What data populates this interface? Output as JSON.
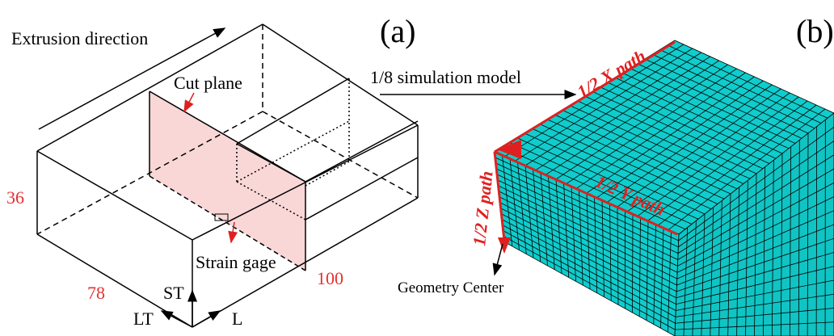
{
  "panel_a": {
    "label": "(a)",
    "extrusion": "Extrusion direction",
    "cut_plane": "Cut plane",
    "dim_height": "36",
    "dim_width": "78",
    "dim_length": "100",
    "strain_gage": "Strain gage",
    "axis_st": "ST",
    "axis_lt": "LT",
    "axis_l": "L"
  },
  "arrow_label": "1/8 simulation model",
  "panel_b": {
    "label": "(b)",
    "x_path": "1/2 X path",
    "y_path": "1/2 Y path",
    "z_path": "1/2 Z path",
    "center": "Geometry Center"
  }
}
